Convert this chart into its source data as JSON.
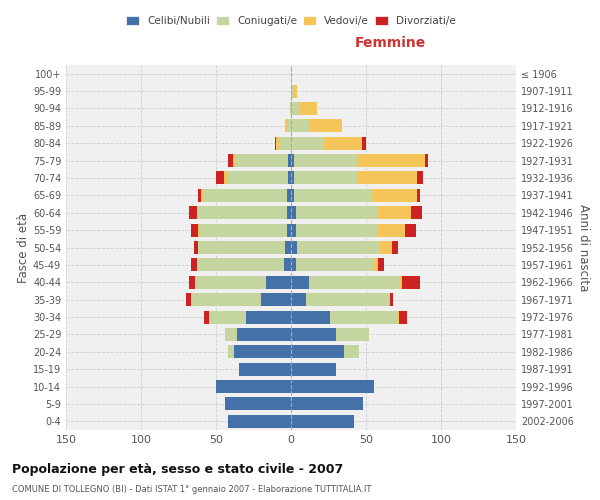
{
  "age_groups": [
    "0-4",
    "5-9",
    "10-14",
    "15-19",
    "20-24",
    "25-29",
    "30-34",
    "35-39",
    "40-44",
    "45-49",
    "50-54",
    "55-59",
    "60-64",
    "65-69",
    "70-74",
    "75-79",
    "80-84",
    "85-89",
    "90-94",
    "95-99",
    "100+"
  ],
  "birth_years": [
    "2002-2006",
    "1997-2001",
    "1992-1996",
    "1987-1991",
    "1982-1986",
    "1977-1981",
    "1972-1976",
    "1967-1971",
    "1962-1966",
    "1957-1961",
    "1952-1956",
    "1947-1951",
    "1942-1946",
    "1937-1941",
    "1932-1936",
    "1927-1931",
    "1922-1926",
    "1917-1921",
    "1912-1916",
    "1907-1911",
    "≤ 1906"
  ],
  "males": {
    "celibi": [
      42,
      44,
      50,
      35,
      38,
      36,
      30,
      20,
      17,
      5,
      4,
      3,
      3,
      3,
      2,
      2,
      0,
      0,
      0,
      0,
      0
    ],
    "coniugati": [
      0,
      0,
      0,
      0,
      4,
      8,
      25,
      47,
      47,
      58,
      58,
      58,
      60,
      56,
      40,
      35,
      8,
      3,
      1,
      0,
      0
    ],
    "vedovi": [
      0,
      0,
      0,
      0,
      0,
      0,
      0,
      0,
      0,
      0,
      0,
      1,
      0,
      1,
      3,
      2,
      2,
      1,
      0,
      0,
      0
    ],
    "divorziati": [
      0,
      0,
      0,
      0,
      0,
      0,
      3,
      3,
      4,
      4,
      3,
      5,
      5,
      2,
      5,
      3,
      1,
      0,
      0,
      0,
      0
    ]
  },
  "females": {
    "nubili": [
      42,
      48,
      55,
      30,
      35,
      30,
      26,
      10,
      12,
      3,
      4,
      3,
      3,
      2,
      2,
      2,
      0,
      0,
      0,
      0,
      0
    ],
    "coniugate": [
      0,
      0,
      0,
      0,
      10,
      22,
      45,
      55,
      60,
      52,
      55,
      55,
      55,
      52,
      42,
      42,
      22,
      12,
      5,
      2,
      0
    ],
    "vedove": [
      0,
      0,
      0,
      0,
      0,
      0,
      1,
      1,
      2,
      3,
      8,
      18,
      22,
      30,
      40,
      45,
      25,
      22,
      12,
      2,
      0
    ],
    "divorziate": [
      0,
      0,
      0,
      0,
      0,
      0,
      5,
      2,
      12,
      4,
      4,
      7,
      7,
      2,
      4,
      2,
      3,
      0,
      0,
      0,
      0
    ]
  },
  "colors": {
    "celibi": "#4472a8",
    "coniugati": "#c5d5a0",
    "vedovi": "#f5c55a",
    "divorziati": "#cc2222"
  },
  "xlim": 150,
  "title": "Popolazione per età, sesso e stato civile - 2007",
  "subtitle": "COMUNE DI TOLLEGNO (BI) - Dati ISTAT 1° gennaio 2007 - Elaborazione TUTTITALIA.IT",
  "ylabel_left": "Fasce di età",
  "ylabel_right": "Anni di nascita",
  "xlabel_right": "Femmine",
  "legend_labels": [
    "Celibi/Nubili",
    "Coniugati/e",
    "Vedovi/e",
    "Divorziati/e"
  ],
  "background_color": "#f0f0f0",
  "grid_color": "#cccccc"
}
